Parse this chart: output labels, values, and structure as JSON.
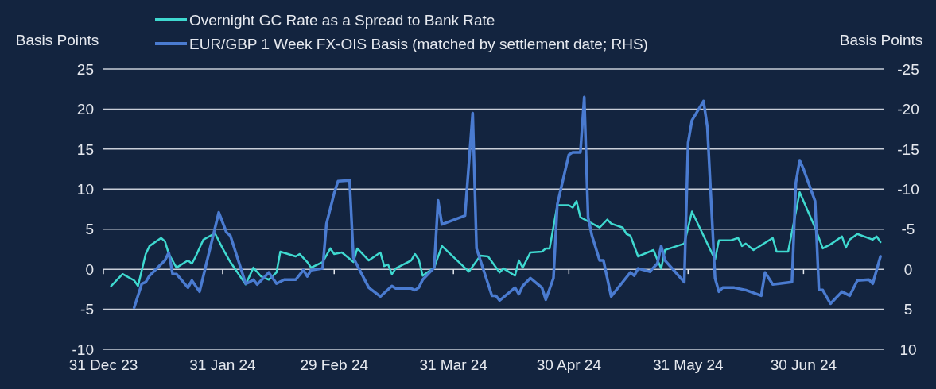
{
  "chart_data": {
    "type": "line",
    "ylabel": "Basis Points",
    "y2label": "Basis Points",
    "legend": "top",
    "grid": "y",
    "line_style": "solid",
    "marker": "none",
    "xlim": [
      "2023-12-31",
      "2024-07-21"
    ],
    "xticks": [
      {
        "value": "2023-12-31",
        "label": "31 Dec 23"
      },
      {
        "value": "2024-01-31",
        "label": "31 Jan 24"
      },
      {
        "value": "2024-02-29",
        "label": "29 Feb 24"
      },
      {
        "value": "2024-03-31",
        "label": "31 Mar 24"
      },
      {
        "value": "2024-04-30",
        "label": "30 Apr 24"
      },
      {
        "value": "2024-05-31",
        "label": "31 May 24"
      },
      {
        "value": "2024-06-30",
        "label": "30 Jun 24"
      }
    ],
    "ylim": [
      -10,
      25
    ],
    "yticks": [
      25,
      20,
      15,
      10,
      5,
      0,
      -5,
      -10
    ],
    "y2lim": [
      10,
      -25
    ],
    "y2ticks": [
      -25,
      -20,
      -15,
      -10,
      -5,
      0,
      5,
      10
    ],
    "series": [
      {
        "name": "Overnight GC Rate as a Spread to Bank Rate",
        "color": "#3fd9d0",
        "x": [
          "2024-01-02",
          "2024-01-05",
          "2024-01-08",
          "2024-01-09",
          "2024-01-11",
          "2024-01-12",
          "2024-01-15",
          "2024-01-16",
          "2024-01-17",
          "2024-01-19",
          "2024-01-22",
          "2024-01-23",
          "2024-01-24",
          "2024-01-26",
          "2024-01-29",
          "2024-01-31",
          "2024-02-02",
          "2024-02-06",
          "2024-02-08",
          "2024-02-10",
          "2024-02-11",
          "2024-02-12",
          "2024-02-14",
          "2024-02-15",
          "2024-02-19",
          "2024-02-20",
          "2024-02-22",
          "2024-02-23",
          "2024-02-26",
          "2024-02-28",
          "2024-02-29",
          "2024-03-02",
          "2024-03-05",
          "2024-03-06",
          "2024-03-09",
          "2024-03-12",
          "2024-03-13",
          "2024-03-14",
          "2024-03-15",
          "2024-03-16",
          "2024-03-20",
          "2024-03-21",
          "2024-03-22",
          "2024-03-23",
          "2024-03-26",
          "2024-03-28",
          "2024-04-04",
          "2024-04-07",
          "2024-04-09",
          "2024-04-12",
          "2024-04-13",
          "2024-04-16",
          "2024-04-17",
          "2024-04-18",
          "2024-04-20",
          "2024-04-23",
          "2024-04-24",
          "2024-04-25",
          "2024-04-27",
          "2024-04-30",
          "2024-05-01",
          "2024-05-02",
          "2024-05-03",
          "2024-05-08",
          "2024-05-10",
          "2024-05-11",
          "2024-05-14",
          "2024-05-15",
          "2024-05-16",
          "2024-05-18",
          "2024-05-22",
          "2024-05-23",
          "2024-05-24",
          "2024-05-25",
          "2024-05-30",
          "2024-06-01",
          "2024-06-04",
          "2024-06-07",
          "2024-06-08",
          "2024-06-11",
          "2024-06-13",
          "2024-06-14",
          "2024-06-15",
          "2024-06-17",
          "2024-06-22",
          "2024-06-23",
          "2024-06-26",
          "2024-06-29",
          "2024-07-03",
          "2024-07-05",
          "2024-07-07",
          "2024-07-10",
          "2024-07-11",
          "2024-07-12",
          "2024-07-14",
          "2024-07-18",
          "2024-07-19",
          "2024-07-20"
        ],
        "values": [
          -2.1,
          -0.6,
          -1.4,
          -2.1,
          1.9,
          2.9,
          3.9,
          3.5,
          1.9,
          0.2,
          1.1,
          0.7,
          1.6,
          3.7,
          4.5,
          2.6,
          0.9,
          -1.9,
          0.2,
          -0.9,
          -1.1,
          -1.3,
          -0.4,
          2.2,
          1.6,
          1.9,
          0.9,
          0.2,
          0.9,
          2.6,
          1.9,
          2.1,
          0.9,
          2.6,
          1.1,
          2.1,
          0.4,
          0.6,
          -0.6,
          0.1,
          1.1,
          1.9,
          1.2,
          -0.8,
          0.2,
          2.9,
          -0.3,
          1.7,
          1.6,
          -0.4,
          0.1,
          -0.8,
          1.1,
          0.2,
          2.1,
          2.2,
          2.6,
          2.6,
          8.0,
          8.0,
          7.7,
          8.5,
          6.5,
          5.2,
          6.2,
          5.7,
          5.2,
          4.4,
          4.2,
          1.6,
          2.4,
          1.2,
          0.1,
          2.4,
          3.2,
          7.2,
          4.2,
          1.2,
          3.6,
          3.6,
          3.9,
          2.9,
          3.2,
          2.4,
          3.9,
          2.2,
          2.2,
          9.6,
          5.2,
          2.6,
          3.1,
          4.1,
          2.7,
          3.7,
          4.4,
          3.7,
          4.1,
          3.4
        ]
      },
      {
        "name": "EUR/GBP 1 Week FX-OIS Basis (matched by settlement date; RHS)",
        "color": "#4a7bd0",
        "axis": "y2",
        "x": [
          "2024-01-08",
          "2024-01-10",
          "2024-01-11",
          "2024-01-12",
          "2024-01-16",
          "2024-01-17",
          "2024-01-18",
          "2024-01-19",
          "2024-01-22",
          "2024-01-23",
          "2024-01-25",
          "2024-01-30",
          "2024-02-01",
          "2024-02-02",
          "2024-02-06",
          "2024-02-07",
          "2024-02-08",
          "2024-02-09",
          "2024-02-12",
          "2024-02-14",
          "2024-02-16",
          "2024-02-19",
          "2024-02-21",
          "2024-02-22",
          "2024-02-23",
          "2024-02-26",
          "2024-02-27",
          "2024-02-29",
          "2024-03-01",
          "2024-03-04",
          "2024-03-05",
          "2024-03-09",
          "2024-03-12",
          "2024-03-15",
          "2024-03-16",
          "2024-03-20",
          "2024-03-21",
          "2024-03-22",
          "2024-03-23",
          "2024-03-26",
          "2024-03-27",
          "2024-03-28",
          "2024-04-03",
          "2024-04-05",
          "2024-04-06",
          "2024-04-10",
          "2024-04-11",
          "2024-04-12",
          "2024-04-16",
          "2024-04-17",
          "2024-04-18",
          "2024-04-20",
          "2024-04-23",
          "2024-04-24",
          "2024-04-26",
          "2024-04-27",
          "2024-04-30",
          "2024-05-01",
          "2024-05-03",
          "2024-05-04",
          "2024-05-05",
          "2024-05-06",
          "2024-05-08",
          "2024-05-09",
          "2024-05-11",
          "2024-05-14",
          "2024-05-16",
          "2024-05-17",
          "2024-05-18",
          "2024-05-21",
          "2024-05-23",
          "2024-05-24",
          "2024-05-25",
          "2024-05-30",
          "2024-05-31",
          "2024-06-01",
          "2024-06-04",
          "2024-06-05",
          "2024-06-07",
          "2024-06-08",
          "2024-06-09",
          "2024-06-12",
          "2024-06-15",
          "2024-06-19",
          "2024-06-20",
          "2024-06-22",
          "2024-06-27",
          "2024-06-28",
          "2024-06-29",
          "2024-06-30",
          "2024-07-03",
          "2024-07-04",
          "2024-07-05",
          "2024-07-07",
          "2024-07-10",
          "2024-07-12",
          "2024-07-14",
          "2024-07-17",
          "2024-07-18",
          "2024-07-20"
        ],
        "values": [
          4.8,
          1.8,
          1.6,
          0.8,
          -1.1,
          -2.1,
          0.6,
          0.6,
          2.3,
          1.4,
          2.8,
          -7.1,
          -4.6,
          -4.2,
          1.8,
          1.6,
          1.3,
          1.9,
          0.4,
          1.8,
          1.3,
          1.3,
          0.1,
          0.9,
          0.1,
          -0.1,
          -5.7,
          -9.5,
          -11.0,
          -11.1,
          -1.4,
          2.3,
          3.4,
          2.1,
          2.4,
          2.4,
          2.6,
          2.3,
          1.3,
          -0.2,
          -8.6,
          -5.6,
          -6.7,
          -19.5,
          -2.6,
          3.3,
          3.3,
          3.9,
          2.3,
          3.1,
          2.1,
          1.1,
          2.3,
          3.8,
          1.1,
          -8.1,
          -14.3,
          -14.6,
          -14.6,
          -21.5,
          -6.5,
          -4.2,
          -1.1,
          -1.1,
          3.4,
          1.6,
          0.4,
          0.8,
          -0.1,
          0.3,
          -0.7,
          -2.9,
          -1.1,
          1.6,
          -15.8,
          -18.6,
          -21.0,
          -17.8,
          1.1,
          2.8,
          2.3,
          2.3,
          2.6,
          3.3,
          0.4,
          1.9,
          1.6,
          -10.8,
          -13.6,
          -12.5,
          -8.5,
          2.6,
          2.6,
          4.3,
          2.8,
          3.3,
          1.4,
          1.3,
          1.8,
          -1.6
        ]
      }
    ]
  }
}
